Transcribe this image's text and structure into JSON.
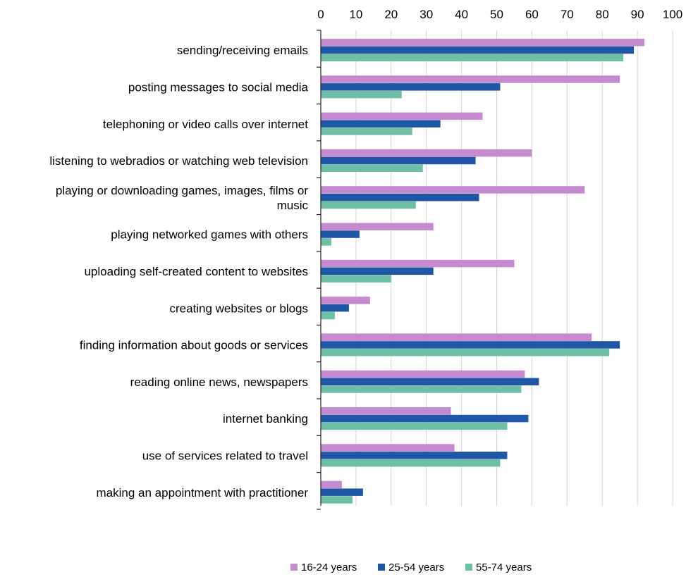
{
  "chart_data": {
    "type": "bar",
    "orientation": "horizontal",
    "categories": [
      [
        "sending/receiving emails"
      ],
      [
        "posting messages to social media"
      ],
      [
        "telephoning or video calls over internet"
      ],
      [
        "listening to webradios or watching web television"
      ],
      [
        "playing or downloading games, images, films or",
        "music"
      ],
      [
        "playing networked games with others"
      ],
      [
        "uploading self-created content to websites"
      ],
      [
        "creating websites or blogs"
      ],
      [
        "finding information about goods or services"
      ],
      [
        "reading online news, newspapers"
      ],
      [
        "internet banking"
      ],
      [
        "use of services related to travel"
      ],
      [
        "making an appointment with practitioner"
      ]
    ],
    "series": [
      {
        "name": "16-24 years",
        "color": "#c58ad0",
        "values": [
          92,
          85,
          46,
          60,
          75,
          32,
          55,
          14,
          77,
          58,
          37,
          38,
          6
        ]
      },
      {
        "name": "25-54 years",
        "color": "#1f56a6",
        "values": [
          89,
          51,
          34,
          44,
          45,
          11,
          32,
          8,
          85,
          62,
          59,
          53,
          12
        ]
      },
      {
        "name": "55-74 years",
        "color": "#6fbfa8",
        "values": [
          86,
          23,
          26,
          29,
          27,
          3,
          20,
          4,
          82,
          57,
          53,
          51,
          9
        ]
      }
    ],
    "xlim": [
      0,
      100
    ],
    "xticks": [
      "0",
      "10",
      "20",
      "30",
      "40",
      "50",
      "60",
      "70",
      "80",
      "90",
      "100"
    ],
    "x_axis_position": "top",
    "grid": "vertical",
    "legend_position": "bottom"
  }
}
